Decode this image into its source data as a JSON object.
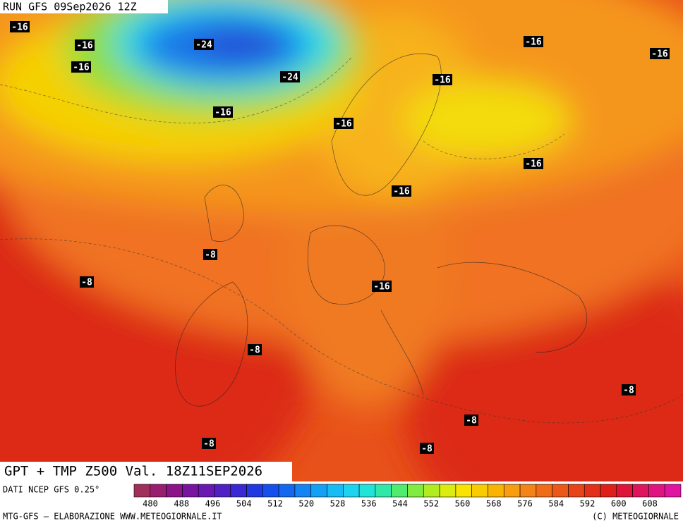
{
  "header": {
    "run": "RUN GFS 09Sep2026 12Z"
  },
  "map": {
    "labels": [
      "-16",
      "-16",
      "-16",
      "-24",
      "-24",
      "-16",
      "-16",
      "-16",
      "-16",
      "-16",
      "-16",
      "-16",
      "-8",
      "-8",
      "-16",
      "-8",
      "-8",
      "-8",
      "-8",
      "-8"
    ]
  },
  "title": "GPT + TMP Z500 Val. 18Z11SEP2026",
  "legend": {
    "source": "DATI NCEP GFS 0.25°",
    "ticks": [
      480,
      488,
      496,
      504,
      512,
      520,
      528,
      536,
      544,
      552,
      560,
      568,
      576,
      584,
      592,
      600,
      608
    ]
  },
  "footer": {
    "left": "MTG-GFS — ELABORAZIONE WWW.METEOGIORNALE.IT",
    "right": "(C) METEOGIORNALE"
  }
}
